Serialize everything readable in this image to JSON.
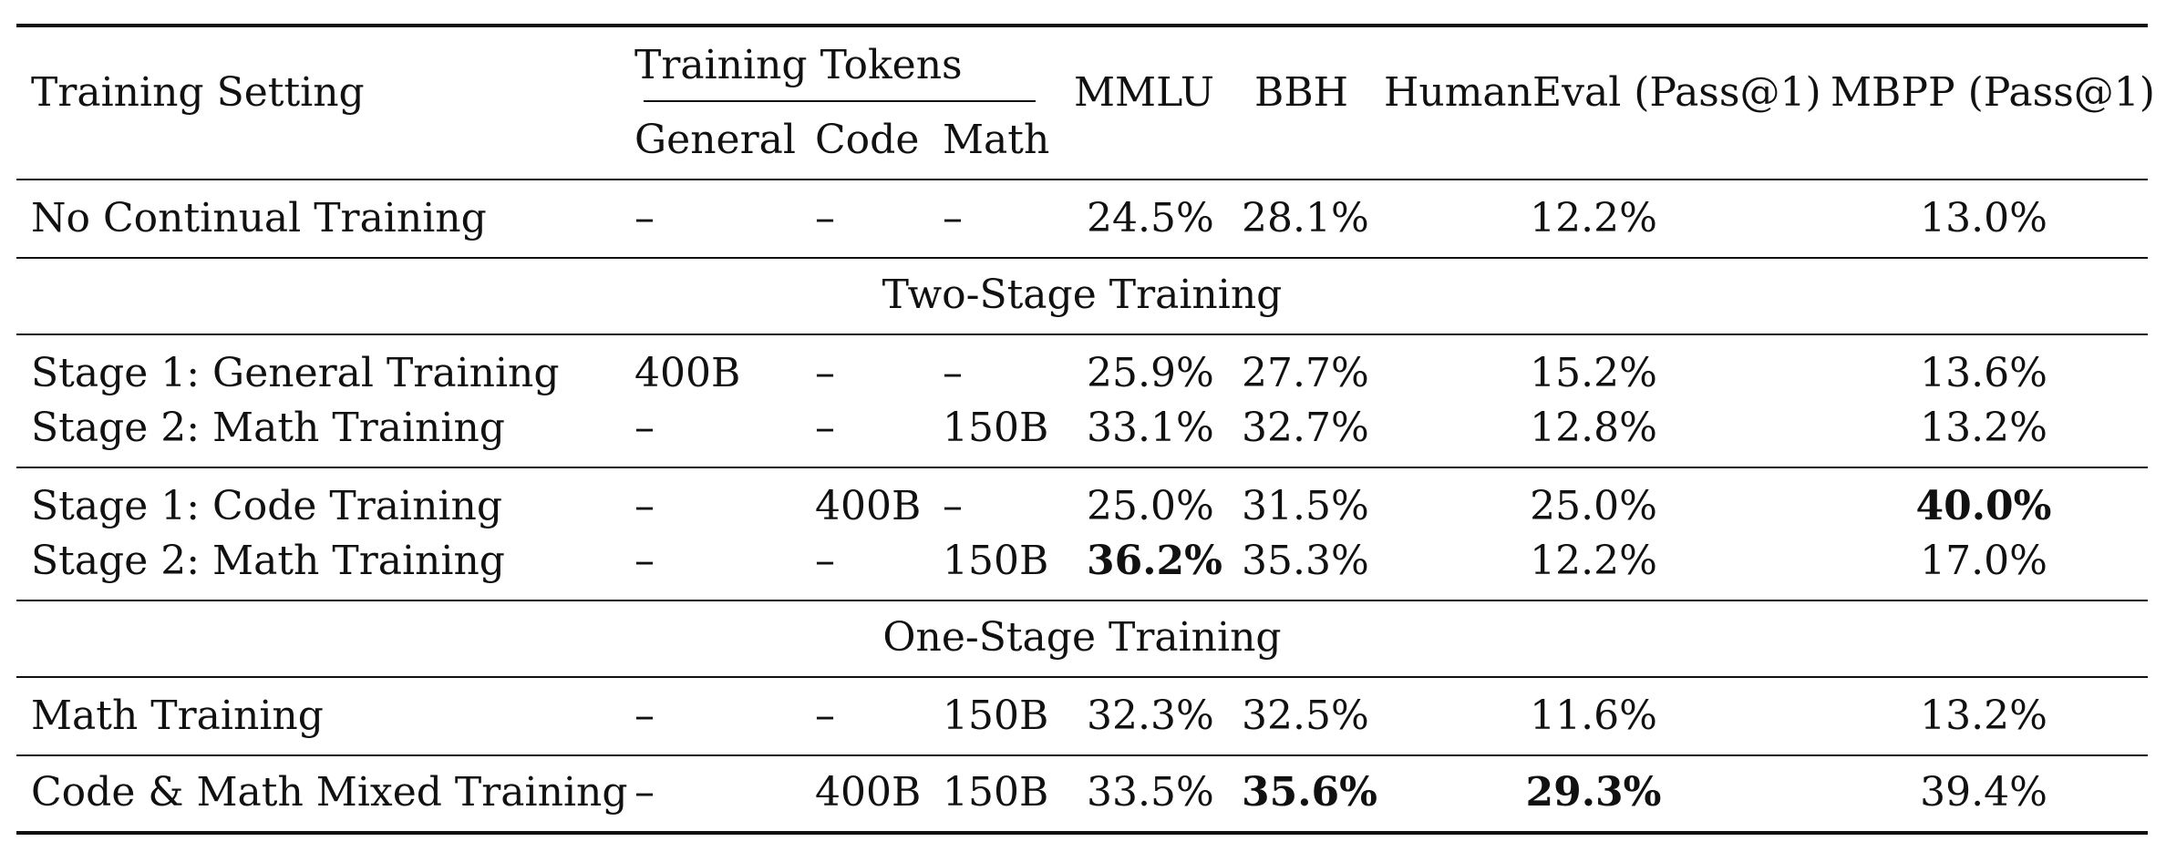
{
  "header": {
    "setting": "Training Setting",
    "tokens": "Training Tokens",
    "general": "General",
    "code": "Code",
    "math": "Math",
    "mmlu": "MMLU",
    "bbh": "BBH",
    "humaneval": "HumanEval (Pass@1)",
    "mbpp": "MBPP (Pass@1)"
  },
  "rows": {
    "no_ct": {
      "setting": "No Continual Training",
      "general": "–",
      "code": "–",
      "math": "–",
      "mmlu": "24.5%",
      "bbh": "28.1%",
      "humaneval": "12.2%",
      "mbpp": "13.0%"
    },
    "two_stage_title": "Two-Stage Training",
    "g1": {
      "setting": "Stage 1: General Training",
      "general": "400B",
      "code": "–",
      "math": "–",
      "mmlu": "25.9%",
      "bbh": "27.7%",
      "humaneval": "15.2%",
      "mbpp": "13.6%"
    },
    "g2": {
      "setting": "Stage 2: Math Training",
      "general": "–",
      "code": "–",
      "math": "150B",
      "mmlu": "33.1%",
      "bbh": "32.7%",
      "humaneval": "12.8%",
      "mbpp": "13.2%"
    },
    "c1": {
      "setting": "Stage 1: Code Training",
      "general": "–",
      "code": "400B",
      "math": "–",
      "mmlu": "25.0%",
      "bbh": "31.5%",
      "humaneval": "25.0%",
      "mbpp": "40.0%"
    },
    "c2": {
      "setting": "Stage 2: Math Training",
      "general": "–",
      "code": "–",
      "math": "150B",
      "mmlu": "36.2%",
      "bbh": "35.3%",
      "humaneval": "12.2%",
      "mbpp": "17.0%"
    },
    "one_stage_title": "One-Stage Training",
    "m": {
      "setting": "Math Training",
      "general": "–",
      "code": "–",
      "math": "150B",
      "mmlu": "32.3%",
      "bbh": "32.5%",
      "humaneval": "11.6%",
      "mbpp": "13.2%"
    },
    "cm": {
      "setting": "Code & Math Mixed Training",
      "general": "–",
      "code": "400B",
      "math": "150B",
      "mmlu": "33.5%",
      "bbh": "35.6%",
      "humaneval": "29.3%",
      "mbpp": "39.4%"
    }
  }
}
